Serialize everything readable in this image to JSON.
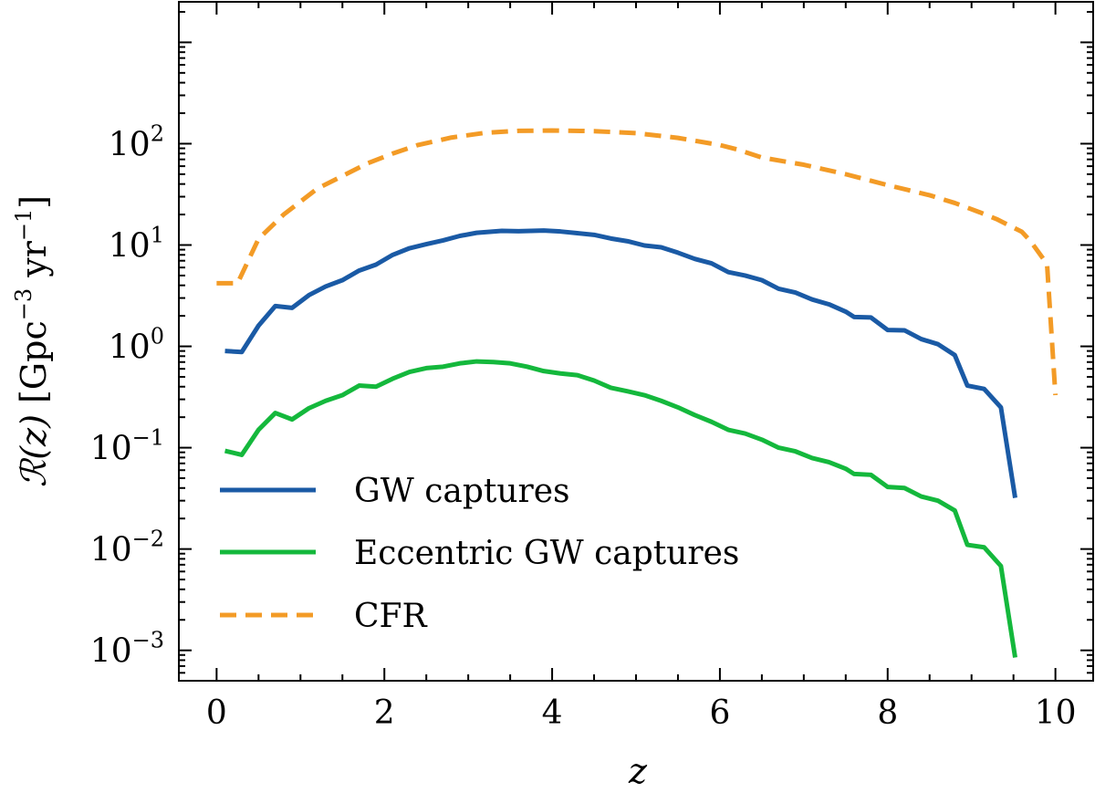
{
  "chart_data": {
    "type": "line",
    "xlabel": "z",
    "ylabel": {
      "symbol": "ℛ(z)",
      "units_prefix": "[Gpc",
      "exp1": "−3",
      "units_mid": " yr",
      "exp2": "−1",
      "units_suffix": "]"
    },
    "xlim": [
      -0.45,
      10.45
    ],
    "ylim_log10": [
      -3.3,
      3.4
    ],
    "yscale": "log",
    "xticks": [
      0,
      2,
      4,
      6,
      8,
      10
    ],
    "xtick_labels": [
      "0",
      "2",
      "4",
      "6",
      "8",
      "10"
    ],
    "yticks_log10": [
      -3,
      -2,
      -1,
      0,
      1,
      2
    ],
    "ytick_labels": [
      {
        "base": "10",
        "exp": "−3"
      },
      {
        "base": "10",
        "exp": "−2"
      },
      {
        "base": "10",
        "exp": "−1"
      },
      {
        "base": "10",
        "exp": "0"
      },
      {
        "base": "10",
        "exp": "1"
      },
      {
        "base": "10",
        "exp": "2"
      }
    ],
    "legend_position": "lower-left",
    "series": [
      {
        "name": "GW captures",
        "color": "#1a5aa5",
        "dash": "solid",
        "points": [
          [
            0.1,
            0.9
          ],
          [
            0.3,
            0.88
          ],
          [
            0.5,
            1.6
          ],
          [
            0.7,
            2.5
          ],
          [
            0.9,
            2.4
          ],
          [
            1.1,
            3.2
          ],
          [
            1.3,
            3.9
          ],
          [
            1.5,
            4.5
          ],
          [
            1.7,
            5.6
          ],
          [
            1.9,
            6.4
          ],
          [
            2.1,
            8.0
          ],
          [
            2.3,
            9.3
          ],
          [
            2.5,
            10.2
          ],
          [
            2.7,
            11.1
          ],
          [
            2.9,
            12.3
          ],
          [
            3.1,
            13.2
          ],
          [
            3.4,
            13.8
          ],
          [
            3.6,
            13.7
          ],
          [
            3.9,
            13.9
          ],
          [
            4.1,
            13.6
          ],
          [
            4.3,
            13.1
          ],
          [
            4.5,
            12.6
          ],
          [
            4.7,
            11.6
          ],
          [
            4.9,
            10.9
          ],
          [
            5.1,
            9.9
          ],
          [
            5.3,
            9.5
          ],
          [
            5.5,
            8.4
          ],
          [
            5.7,
            7.3
          ],
          [
            5.9,
            6.6
          ],
          [
            6.1,
            5.4
          ],
          [
            6.3,
            5.0
          ],
          [
            6.5,
            4.5
          ],
          [
            6.7,
            3.7
          ],
          [
            6.9,
            3.4
          ],
          [
            7.1,
            2.9
          ],
          [
            7.3,
            2.6
          ],
          [
            7.5,
            2.2
          ],
          [
            7.6,
            1.95
          ],
          [
            7.8,
            1.93
          ],
          [
            8.0,
            1.45
          ],
          [
            8.2,
            1.44
          ],
          [
            8.4,
            1.18
          ],
          [
            8.6,
            1.05
          ],
          [
            8.8,
            0.82
          ],
          [
            8.95,
            0.41
          ],
          [
            9.15,
            0.38
          ],
          [
            9.35,
            0.25
          ],
          [
            9.52,
            0.032
          ]
        ]
      },
      {
        "name": "Eccentric GW captures",
        "color": "#14b83c",
        "dash": "solid",
        "points": [
          [
            0.1,
            0.093
          ],
          [
            0.3,
            0.085
          ],
          [
            0.5,
            0.15
          ],
          [
            0.7,
            0.22
          ],
          [
            0.9,
            0.19
          ],
          [
            1.1,
            0.245
          ],
          [
            1.3,
            0.29
          ],
          [
            1.5,
            0.33
          ],
          [
            1.7,
            0.41
          ],
          [
            1.9,
            0.4
          ],
          [
            2.1,
            0.48
          ],
          [
            2.3,
            0.56
          ],
          [
            2.5,
            0.61
          ],
          [
            2.7,
            0.63
          ],
          [
            2.9,
            0.68
          ],
          [
            3.1,
            0.71
          ],
          [
            3.3,
            0.7
          ],
          [
            3.5,
            0.68
          ],
          [
            3.7,
            0.63
          ],
          [
            3.9,
            0.57
          ],
          [
            4.1,
            0.54
          ],
          [
            4.3,
            0.52
          ],
          [
            4.5,
            0.46
          ],
          [
            4.7,
            0.39
          ],
          [
            4.9,
            0.36
          ],
          [
            5.1,
            0.33
          ],
          [
            5.3,
            0.29
          ],
          [
            5.5,
            0.25
          ],
          [
            5.7,
            0.21
          ],
          [
            5.9,
            0.18
          ],
          [
            6.1,
            0.15
          ],
          [
            6.3,
            0.138
          ],
          [
            6.5,
            0.12
          ],
          [
            6.7,
            0.1
          ],
          [
            6.9,
            0.092
          ],
          [
            7.1,
            0.079
          ],
          [
            7.3,
            0.072
          ],
          [
            7.5,
            0.062
          ],
          [
            7.6,
            0.055
          ],
          [
            7.8,
            0.054
          ],
          [
            8.0,
            0.041
          ],
          [
            8.2,
            0.04
          ],
          [
            8.4,
            0.033
          ],
          [
            8.6,
            0.03
          ],
          [
            8.8,
            0.024
          ],
          [
            8.95,
            0.011
          ],
          [
            9.15,
            0.0104
          ],
          [
            9.35,
            0.0068
          ],
          [
            9.52,
            0.00085
          ]
        ]
      },
      {
        "name": "CFR",
        "color": "#f39b26",
        "dash": "dashed",
        "points": [
          [
            0.0,
            4.2
          ],
          [
            0.25,
            4.2
          ],
          [
            0.5,
            11.5
          ],
          [
            0.8,
            20
          ],
          [
            1.2,
            36
          ],
          [
            1.5,
            48
          ],
          [
            1.8,
            64
          ],
          [
            2.1,
            80
          ],
          [
            2.4,
            97
          ],
          [
            2.8,
            115
          ],
          [
            3.2,
            128
          ],
          [
            3.6,
            134
          ],
          [
            4.0,
            135
          ],
          [
            4.5,
            133
          ],
          [
            5.0,
            127
          ],
          [
            5.5,
            114
          ],
          [
            6.0,
            97
          ],
          [
            6.2,
            88
          ],
          [
            6.5,
            73
          ],
          [
            7.0,
            62
          ],
          [
            7.5,
            50
          ],
          [
            8.0,
            39
          ],
          [
            8.5,
            31
          ],
          [
            8.8,
            26
          ],
          [
            9.1,
            21
          ],
          [
            9.3,
            18
          ],
          [
            9.6,
            13.5
          ],
          [
            9.7,
            11
          ],
          [
            9.9,
            6.5
          ],
          [
            10.0,
            0.33
          ]
        ]
      }
    ]
  }
}
